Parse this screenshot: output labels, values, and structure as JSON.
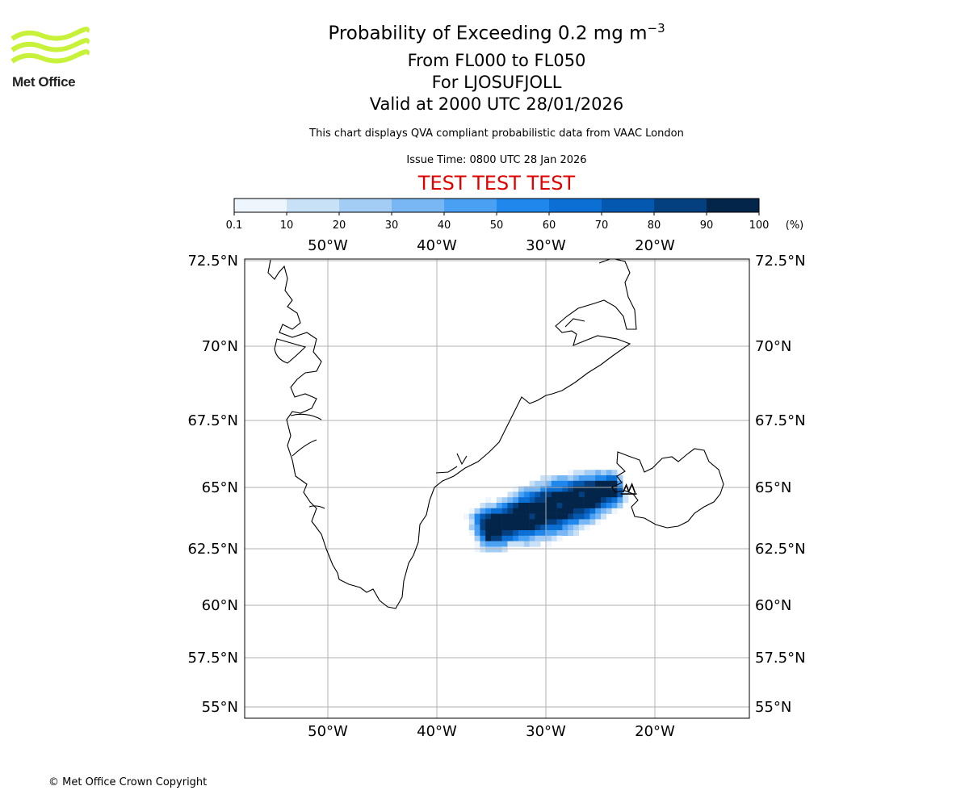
{
  "header": {
    "logo_text": "Met Office",
    "title_main": "Probability of Exceeding 0.2 mg m",
    "title_exponent": "−3",
    "levels": "From FL000 to FL050",
    "volcano": "For LJOSUFJOLL",
    "valid_time": "Valid at 2000 UTC 28/01/2026",
    "source_note": "This chart displays QVA compliant probabilistic data from VAAC London",
    "issue_time": "Issue Time: 0800 UTC 28 Jan 2026",
    "test_banner": "TEST TEST TEST",
    "test_color": "#e00000"
  },
  "colorbar": {
    "unit_label": "(%)",
    "tick_labels": [
      "0.1",
      "10",
      "20",
      "30",
      "40",
      "50",
      "60",
      "70",
      "80",
      "90",
      "100"
    ],
    "colors": [
      "#eef5fd",
      "#c9e1f7",
      "#a3cdf4",
      "#78b7f3",
      "#4aa0f2",
      "#2088ec",
      "#0b6fd4",
      "#0558b0",
      "#043f80",
      "#03254a"
    ]
  },
  "map": {
    "lon_labels": [
      "50°W",
      "40°W",
      "30°W",
      "20°W"
    ],
    "lon_values": [
      -50,
      -40,
      -30,
      -20
    ],
    "lat_labels": [
      "72.5°N",
      "70°N",
      "67.5°N",
      "65°N",
      "62.5°N",
      "60°N",
      "57.5°N",
      "55°N"
    ],
    "lat_values": [
      72.5,
      70,
      67.5,
      65,
      62.5,
      60,
      57.5,
      55
    ],
    "extent": {
      "lon_min": -57.7,
      "lon_max": -11.3,
      "lat_min": 54.6,
      "lat_max": 72.6
    },
    "grid": true,
    "land_outline_color": "#000000",
    "gridline_color": "#b0b0b0",
    "plume_axis": {
      "start": [
        -35.5,
        63.3
      ],
      "end": [
        -23.5,
        65.0
      ]
    },
    "volcano_location": [
      -22.4,
      64.9
    ]
  },
  "footer": {
    "copyright": "© Met Office Crown Copyright"
  }
}
